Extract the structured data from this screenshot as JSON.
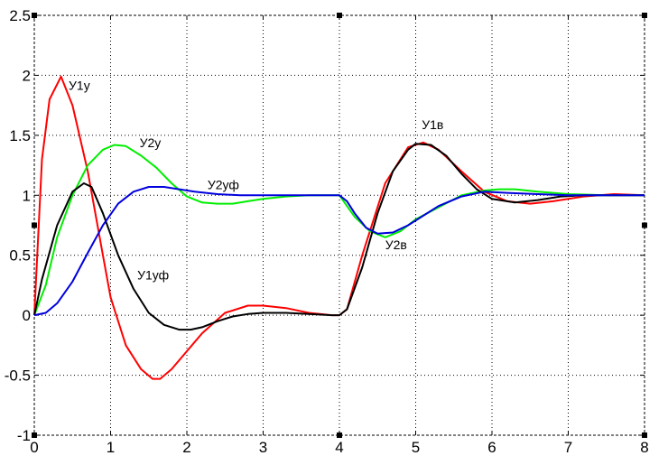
{
  "chart_data": {
    "type": "line",
    "grid": true,
    "xlim": [
      0,
      8
    ],
    "ylim": [
      -1,
      2.5
    ],
    "x_ticks": [
      "0",
      "1",
      "2",
      "3",
      "4",
      "5",
      "6",
      "7",
      "8"
    ],
    "y_ticks": [
      "-1",
      "-0.5",
      "0",
      "0.5",
      "1",
      "1.5",
      "2",
      "2.5"
    ],
    "series": [
      {
        "color": "#ff0000",
        "x": [
          0,
          0.1,
          0.2,
          0.35,
          0.5,
          0.7,
          0.9,
          1.0,
          1.2,
          1.4,
          1.55,
          1.65,
          1.8,
          2.0,
          2.2,
          2.5,
          2.8,
          3.0,
          3.3,
          3.6,
          3.9,
          4.0,
          4.1,
          4.3,
          4.6,
          4.9,
          5.1,
          5.3,
          5.6,
          5.9,
          6.2,
          6.5,
          6.8,
          7.2,
          7.6,
          8.0
        ],
        "y": [
          0,
          1.3,
          1.8,
          1.99,
          1.75,
          1.2,
          0.5,
          0.15,
          -0.25,
          -0.45,
          -0.53,
          -0.53,
          -0.45,
          -0.3,
          -0.15,
          0.02,
          0.08,
          0.08,
          0.06,
          0.02,
          0.0,
          0.0,
          0.05,
          0.5,
          1.1,
          1.4,
          1.44,
          1.38,
          1.2,
          1.03,
          0.95,
          0.93,
          0.95,
          0.99,
          1.01,
          1.0
        ]
      },
      {
        "color": "#00ee00",
        "x": [
          0,
          0.15,
          0.3,
          0.5,
          0.7,
          0.9,
          1.05,
          1.2,
          1.4,
          1.6,
          1.8,
          2.0,
          2.2,
          2.4,
          2.6,
          2.8,
          3.0,
          3.3,
          3.6,
          3.9,
          4.0,
          4.2,
          4.4,
          4.6,
          4.8,
          5.0,
          5.3,
          5.6,
          5.9,
          6.1,
          6.3,
          6.6,
          7.0,
          7.5,
          8.0
        ],
        "y": [
          0,
          0.25,
          0.65,
          1.0,
          1.25,
          1.38,
          1.42,
          1.41,
          1.33,
          1.23,
          1.1,
          0.99,
          0.94,
          0.93,
          0.93,
          0.95,
          0.97,
          0.99,
          1.0,
          1.0,
          1.0,
          0.82,
          0.7,
          0.65,
          0.7,
          0.8,
          0.9,
          1.0,
          1.04,
          1.05,
          1.05,
          1.03,
          1.01,
          1.0,
          1.0
        ]
      },
      {
        "color": "#000000",
        "x": [
          0,
          0.1,
          0.3,
          0.5,
          0.65,
          0.75,
          0.9,
          1.1,
          1.3,
          1.5,
          1.7,
          1.9,
          2.05,
          2.2,
          2.4,
          2.6,
          2.8,
          3.0,
          3.3,
          3.6,
          3.9,
          4.0,
          4.1,
          4.3,
          4.5,
          4.7,
          4.9,
          5.0,
          5.2,
          5.4,
          5.6,
          5.8,
          6.0,
          6.3,
          6.6,
          6.9,
          7.2,
          7.6,
          8.0
        ],
        "y": [
          0,
          0.3,
          0.75,
          1.03,
          1.1,
          1.07,
          0.85,
          0.5,
          0.22,
          0.02,
          -0.08,
          -0.12,
          -0.12,
          -0.1,
          -0.05,
          -0.01,
          0.01,
          0.02,
          0.02,
          0.01,
          0.0,
          0.0,
          0.05,
          0.4,
          0.85,
          1.2,
          1.38,
          1.43,
          1.42,
          1.33,
          1.18,
          1.05,
          0.97,
          0.94,
          0.96,
          0.99,
          1.0,
          1.0,
          1.0
        ]
      },
      {
        "color": "#0000dd",
        "x": [
          0,
          0.15,
          0.3,
          0.5,
          0.7,
          0.9,
          1.1,
          1.3,
          1.5,
          1.7,
          1.9,
          2.1,
          2.4,
          2.7,
          3.0,
          3.3,
          3.6,
          3.9,
          4.0,
          4.1,
          4.2,
          4.35,
          4.5,
          4.7,
          4.9,
          5.1,
          5.3,
          5.6,
          5.9,
          6.2,
          6.6,
          7.0,
          7.5,
          8.0
        ],
        "y": [
          0,
          0.02,
          0.1,
          0.28,
          0.52,
          0.75,
          0.93,
          1.03,
          1.07,
          1.07,
          1.05,
          1.03,
          1.01,
          1.0,
          1.0,
          1.0,
          1.0,
          1.0,
          1.0,
          0.95,
          0.85,
          0.73,
          0.68,
          0.69,
          0.75,
          0.83,
          0.91,
          0.99,
          1.03,
          1.02,
          1.01,
          1.0,
          1.0,
          1.0
        ]
      }
    ],
    "annotations": [
      {
        "text": "У1у",
        "x": 0.45,
        "y": 1.88
      },
      {
        "text": "У2у",
        "x": 1.38,
        "y": 1.4
      },
      {
        "text": "У2уф",
        "x": 2.27,
        "y": 1.05
      },
      {
        "text": "У1уф",
        "x": 1.35,
        "y": 0.3
      },
      {
        "text": "У1в",
        "x": 5.08,
        "y": 1.55
      },
      {
        "text": "У2в",
        "x": 4.6,
        "y": 0.55
      }
    ]
  }
}
